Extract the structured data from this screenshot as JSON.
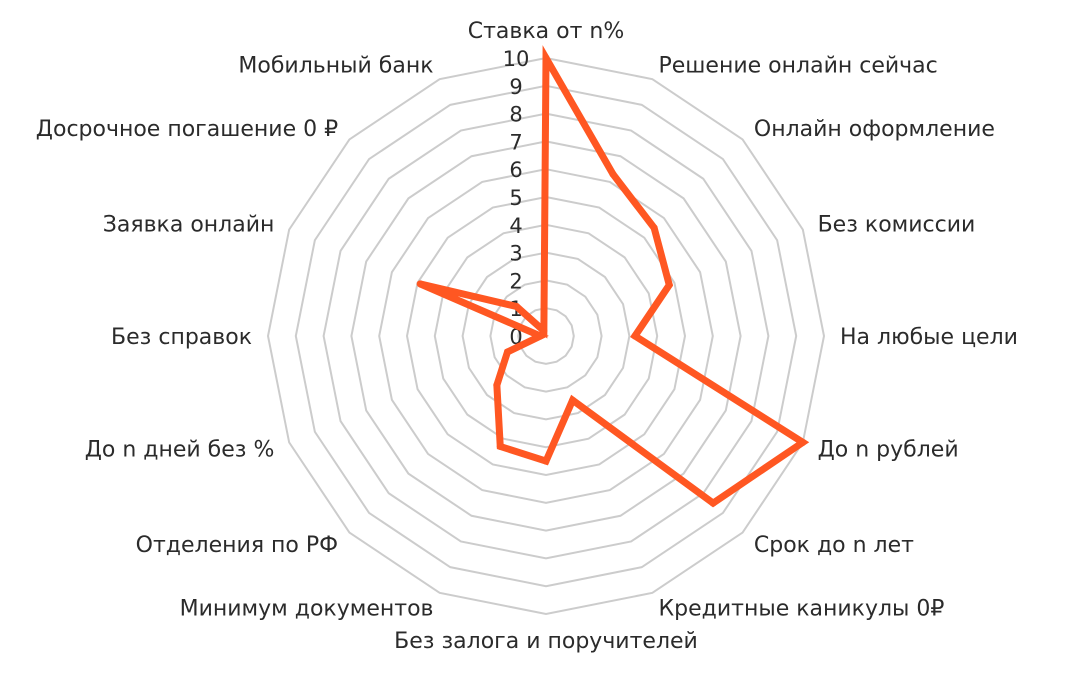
{
  "chart_data": {
    "type": "radar",
    "categories": [
      "Ставка от n%",
      "Решение онлайн сейчас",
      "Онлайн оформление",
      "Без комиссии",
      "На любые цели",
      "До n рублей",
      "Срок до n лет",
      "Кредитные каникулы 0₽",
      "Без залога и поручителей",
      "Минимум документов",
      "Отделения по РФ",
      "До n дней без %",
      "Без справок",
      "Заявка онлайн",
      "Досрочное погашение 0 ₽",
      "Мобильный банк"
    ],
    "series": [
      {
        "values": [
          10,
          6.3,
          5.5,
          4.8,
          3.2,
          10,
          8.5,
          2.5,
          4.5,
          4.3,
          2.5,
          1.5,
          0.2,
          4.9,
          1.5,
          0.2
        ]
      }
    ],
    "rlim": [
      0,
      10
    ],
    "ticks": [
      "0",
      "1",
      "2",
      "3",
      "4",
      "5",
      "6",
      "7",
      "8",
      "9",
      "10"
    ],
    "title": "",
    "legend": "none",
    "grid": true,
    "colors": {
      "series": "#ff5722",
      "grid": "#cccccc",
      "text": "#2b2b2b"
    }
  }
}
